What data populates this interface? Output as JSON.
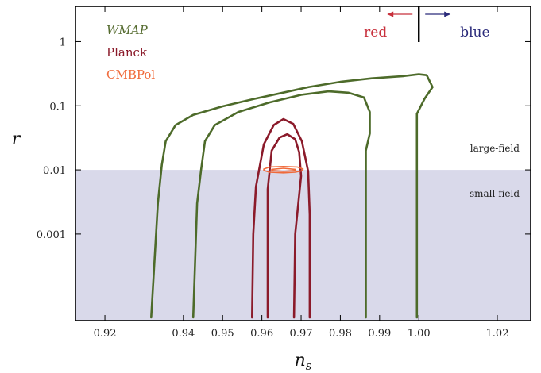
{
  "chart_data": {
    "type": "line",
    "xlabel": "n",
    "xlabel_sub": "s",
    "ylabel": "r",
    "xlim": [
      0.9125,
      1.0285
    ],
    "ylim_log10": [
      -4.35,
      0.55
    ],
    "y_scale": "log",
    "x_ticks": [
      {
        "value": 0.92,
        "label": "0.92"
      },
      {
        "value": 0.94,
        "label": "0.94"
      },
      {
        "value": 0.95,
        "label": "0.95"
      },
      {
        "value": 0.96,
        "label": "0.96"
      },
      {
        "value": 0.97,
        "label": "0.97"
      },
      {
        "value": 0.98,
        "label": "0.98"
      },
      {
        "value": 0.99,
        "label": "0.99"
      },
      {
        "value": 1.0,
        "label": "1.00"
      },
      {
        "value": 1.02,
        "label": "1.02"
      }
    ],
    "y_ticks": [
      {
        "value": 1,
        "label": "1"
      },
      {
        "value": 0.1,
        "label": "0.1"
      },
      {
        "value": 0.01,
        "label": "0.01"
      },
      {
        "value": 0.001,
        "label": "0.001"
      }
    ],
    "regions": {
      "boundary_r": 0.01,
      "color": "#d9d9ea",
      "above_label": "large-field",
      "below_label": "small-field"
    },
    "tilt": {
      "x_value": 1.0,
      "red_label": "red",
      "blue_label": "blue",
      "red_color": "#c8303c",
      "blue_color": "#2a2a7a"
    },
    "legend": [
      {
        "name": "WMAP",
        "color": "#556b2f",
        "italic": true
      },
      {
        "name": "Planck",
        "color": "#8b1a2a",
        "italic": false
      },
      {
        "name": "CMBPol",
        "color": "#f06a3a",
        "italic": false
      }
    ],
    "series": [
      {
        "name": "WMAP",
        "color": "#4d6b2a",
        "contours": [
          [
            [
              0.9318,
              5e-05
            ],
            [
              0.9335,
              0.003
            ],
            [
              0.9345,
              0.012
            ],
            [
              0.9355,
              0.028
            ],
            [
              0.938,
              0.05
            ],
            [
              0.9425,
              0.072
            ],
            [
              0.95,
              0.098
            ],
            [
              0.958,
              0.128
            ],
            [
              0.965,
              0.158
            ],
            [
              0.972,
              0.196
            ],
            [
              0.98,
              0.236
            ],
            [
              0.988,
              0.268
            ],
            [
              0.996,
              0.29
            ],
            [
              1.0,
              0.31
            ],
            [
              1.002,
              0.3
            ],
            [
              1.0035,
              0.195
            ],
            [
              1.0015,
              0.13
            ],
            [
              0.9995,
              0.075
            ],
            [
              0.9995,
              0.035
            ],
            [
              0.9995,
              5e-05
            ]
          ],
          [
            [
              0.9425,
              5e-05
            ],
            [
              0.9435,
              0.003
            ],
            [
              0.9445,
              0.01
            ],
            [
              0.9455,
              0.028
            ],
            [
              0.948,
              0.05
            ],
            [
              0.954,
              0.08
            ],
            [
              0.962,
              0.113
            ],
            [
              0.97,
              0.148
            ],
            [
              0.977,
              0.168
            ],
            [
              0.982,
              0.16
            ],
            [
              0.986,
              0.135
            ],
            [
              0.9875,
              0.08
            ],
            [
              0.9875,
              0.037
            ],
            [
              0.9865,
              0.02
            ],
            [
              0.9865,
              5e-05
            ]
          ]
        ]
      },
      {
        "name": "Planck",
        "color": "#8b1a2a",
        "contours": [
          [
            [
              0.9575,
              5e-05
            ],
            [
              0.9578,
              0.001
            ],
            [
              0.9585,
              0.0055
            ],
            [
              0.9605,
              0.025
            ],
            [
              0.963,
              0.05
            ],
            [
              0.9655,
              0.062
            ],
            [
              0.968,
              0.052
            ],
            [
              0.9702,
              0.028
            ],
            [
              0.9718,
              0.0095
            ],
            [
              0.9722,
              0.002
            ],
            [
              0.9722,
              5e-05
            ]
          ],
          [
            [
              0.9615,
              5e-05
            ],
            [
              0.9615,
              0.001
            ],
            [
              0.9615,
              0.005
            ],
            [
              0.9625,
              0.02
            ],
            [
              0.9645,
              0.032
            ],
            [
              0.9665,
              0.036
            ],
            [
              0.9685,
              0.03
            ],
            [
              0.9695,
              0.019
            ],
            [
              0.97,
              0.008
            ],
            [
              0.9685,
              0.001
            ],
            [
              0.9682,
              5e-05
            ]
          ]
        ]
      },
      {
        "name": "CMBPol",
        "color": "#f06a3a",
        "contours": [
          [
            [
              0.9605,
              0.0103
            ],
            [
              0.962,
              0.0111
            ],
            [
              0.9655,
              0.0113
            ],
            [
              0.969,
              0.0111
            ],
            [
              0.9705,
              0.0103
            ],
            [
              0.9702,
              0.0097
            ],
            [
              0.9685,
              0.0092
            ],
            [
              0.9655,
              0.009
            ],
            [
              0.962,
              0.0092
            ],
            [
              0.9605,
              0.0098
            ],
            [
              0.9605,
              0.0103
            ]
          ],
          [
            [
              0.9625,
              0.0102
            ],
            [
              0.9655,
              0.0106
            ],
            [
              0.9685,
              0.0102
            ],
            [
              0.9685,
              0.0098
            ],
            [
              0.9655,
              0.0095
            ],
            [
              0.9625,
              0.0098
            ],
            [
              0.9625,
              0.0102
            ]
          ]
        ]
      }
    ]
  }
}
